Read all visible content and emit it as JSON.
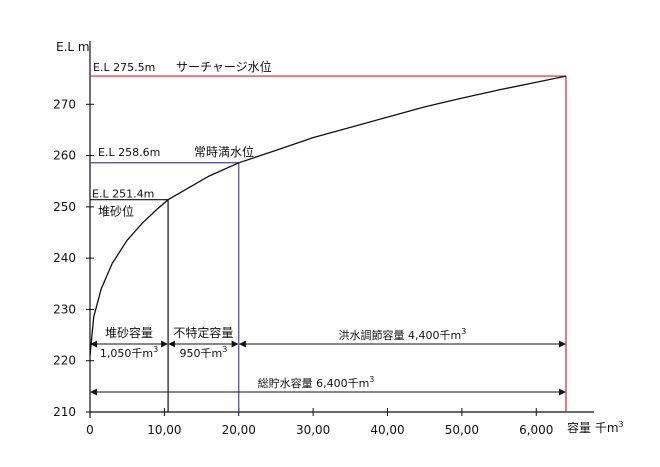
{
  "chart_data": {
    "type": "line",
    "title": "",
    "ylabel": "E.L m",
    "xlabel": "容量",
    "xlabel_unit_main": "千m",
    "xlabel_unit_sup": "3",
    "ylim": [
      210,
      280
    ],
    "xlim": [
      0,
      6400
    ],
    "y_ticks": [
      210,
      220,
      230,
      240,
      250,
      260,
      270
    ],
    "x_ticks": [
      {
        "value": 0,
        "label": "0"
      },
      {
        "value": 1000,
        "label": "10,00"
      },
      {
        "value": 2000,
        "label": "20,00"
      },
      {
        "value": 3000,
        "label": "30,00"
      },
      {
        "value": 4000,
        "label": "40,00"
      },
      {
        "value": 5000,
        "label": "50,00"
      },
      {
        "value": 6000,
        "label": "6,000"
      }
    ],
    "grid": false,
    "series": [
      {
        "x": [
          0,
          50,
          150,
          300,
          500,
          700,
          900,
          1050,
          1300,
          1600,
          2000,
          2500,
          3000,
          3500,
          4000,
          4500,
          5000,
          5500,
          6000,
          6400
        ],
        "y": [
          221.0,
          228.5,
          234.0,
          239.0,
          243.5,
          246.8,
          249.5,
          251.4,
          253.5,
          256.0,
          258.6,
          261.0,
          263.5,
          265.5,
          267.5,
          269.5,
          271.2,
          272.8,
          274.3,
          275.5
        ],
        "color": "#111111"
      }
    ],
    "levels": [
      {
        "name": "surcharge",
        "el": 275.5,
        "capacity": 6400,
        "color": "#dd2222",
        "label": "E.L 275.5m",
        "desc": "サーチャージ水位"
      },
      {
        "name": "normal",
        "el": 258.6,
        "capacity": 2000,
        "color": "#4444aa",
        "label": "E.L 258.6m",
        "desc": "常時満水位"
      },
      {
        "name": "sediment",
        "el": 251.4,
        "capacity": 1050,
        "color": "#111111",
        "label": "E.L 251.4m",
        "desc": "堆砂位"
      }
    ],
    "annotations": [
      {
        "name": "sediment-capacity",
        "from": 0,
        "to": 1050,
        "label": "堆砂容量",
        "value_main": "1,050千m",
        "value_sup": "3"
      },
      {
        "name": "unspecified-capacity",
        "from": 1050,
        "to": 2000,
        "label": "不特定容量",
        "value_main": "950千m",
        "value_sup": "3"
      },
      {
        "name": "flood-control-capacity",
        "from": 2000,
        "to": 6400,
        "label_main": "洪水調節容量  4,400千m",
        "label_sup": "3"
      },
      {
        "name": "total-capacity",
        "from": 0,
        "to": 6400,
        "label_main": "総貯水容量  6,400千m",
        "label_sup": "3"
      }
    ]
  }
}
